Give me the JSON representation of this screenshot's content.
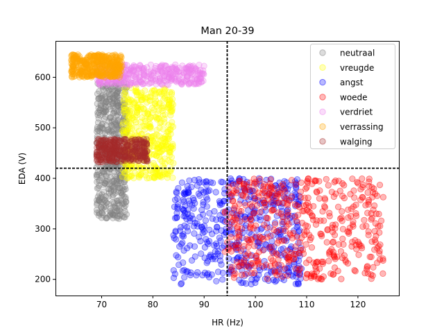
{
  "chart_data": {
    "type": "scatter",
    "title": "Man 20-39",
    "xlabel": "HR (Hz)",
    "ylabel": "EDA (V)",
    "xlim": [
      61,
      128
    ],
    "ylim": [
      168,
      672
    ],
    "xticks": [
      70,
      80,
      90,
      100,
      110,
      120
    ],
    "yticks": [
      200,
      300,
      400,
      500,
      600
    ],
    "xtick_labels": [
      "70",
      "80",
      "90",
      "100",
      "110",
      "120"
    ],
    "ytick_labels": [
      "200",
      "300",
      "400",
      "500",
      "600"
    ],
    "grid": false,
    "legend_position": "top-right",
    "reference_lines": {
      "vertical_x": 94.5,
      "horizontal_y": 420
    },
    "series": [
      {
        "name": "neutraal",
        "color": "#808080",
        "count": 500,
        "x_range": [
          69,
          75
        ],
        "y_range": [
          320,
          590
        ]
      },
      {
        "name": "vreugde",
        "color": "#ffff00",
        "count": 420,
        "x_range": [
          74,
          84
        ],
        "y_range": [
          400,
          580
        ]
      },
      {
        "name": "angst",
        "color": "#0000ff",
        "count": 500,
        "x_range": [
          84,
          109
        ],
        "y_range": [
          190,
          400
        ]
      },
      {
        "name": "woede",
        "color": "#ff0000",
        "count": 500,
        "x_range": [
          94,
          125
        ],
        "y_range": [
          200,
          400
        ]
      },
      {
        "name": "verdriet",
        "color": "#ee82ee",
        "count": 350,
        "x_range": [
          69,
          90
        ],
        "y_range": [
          585,
          625
        ]
      },
      {
        "name": "verrassing",
        "color": "#ffa500",
        "count": 350,
        "x_range": [
          64,
          74
        ],
        "y_range": [
          600,
          645
        ]
      },
      {
        "name": "walging",
        "color": "#a52a2a",
        "count": 300,
        "x_range": [
          69,
          79
        ],
        "y_range": [
          432,
          478
        ]
      }
    ]
  }
}
